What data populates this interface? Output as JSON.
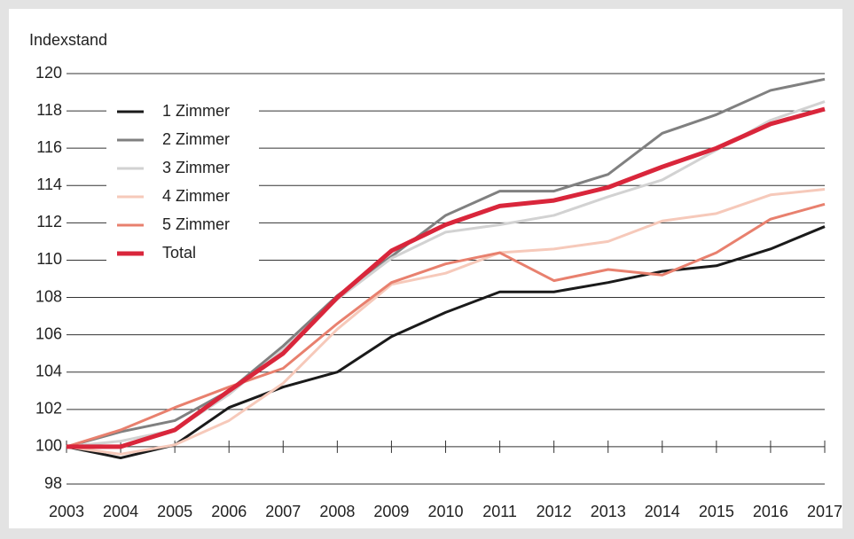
{
  "chart_data": {
    "type": "line",
    "y_label": "Indexstand",
    "x": [
      2003,
      2004,
      2005,
      2006,
      2007,
      2008,
      2009,
      2010,
      2011,
      2012,
      2013,
      2014,
      2015,
      2016,
      2017
    ],
    "xlim": [
      2003,
      2017
    ],
    "xticks": [
      2003,
      2004,
      2005,
      2006,
      2007,
      2008,
      2009,
      2010,
      2011,
      2012,
      2013,
      2014,
      2015,
      2016,
      2017
    ],
    "ylim": [
      98,
      120
    ],
    "yticks": [
      98,
      100,
      102,
      104,
      106,
      108,
      110,
      112,
      114,
      116,
      118,
      120
    ],
    "grid": true,
    "legend": "upper left",
    "series": [
      {
        "name": "1 Zimmer",
        "color": "#1a1a1a",
        "values": [
          100,
          99.4,
          100.1,
          102.1,
          103.2,
          104.0,
          105.9,
          107.2,
          108.3,
          108.3,
          108.8,
          109.4,
          109.7,
          110.6,
          111.8
        ]
      },
      {
        "name": "2 Zimmer",
        "color": "#808080",
        "values": [
          100,
          100.8,
          101.4,
          103.0,
          105.4,
          108.1,
          110.2,
          112.4,
          113.7,
          113.7,
          114.6,
          116.8,
          117.8,
          119.1,
          119.7
        ]
      },
      {
        "name": "3 Zimmer",
        "color": "#d2d2d2",
        "values": [
          100,
          100.3,
          100.9,
          102.8,
          105.2,
          107.9,
          110.1,
          111.5,
          111.9,
          112.4,
          113.4,
          114.3,
          115.9,
          117.5,
          118.5
        ]
      },
      {
        "name": "4 Zimmer",
        "color": "#f6c9ba",
        "values": [
          100,
          99.6,
          100.1,
          101.4,
          103.4,
          106.3,
          108.7,
          109.3,
          110.4,
          110.6,
          111.0,
          112.1,
          112.5,
          113.5,
          113.8
        ]
      },
      {
        "name": "5 Zimmer",
        "color": "#e8806e",
        "values": [
          100,
          100.9,
          102.1,
          103.2,
          104.2,
          106.6,
          108.8,
          109.8,
          110.4,
          108.9,
          109.5,
          109.2,
          110.4,
          112.2,
          113.0
        ]
      },
      {
        "name": "Total",
        "color": "#d9263b",
        "values": [
          100,
          100.0,
          100.9,
          103.0,
          105.0,
          108.0,
          110.5,
          111.9,
          112.9,
          113.2,
          113.9,
          115.0,
          116.0,
          117.3,
          118.1
        ]
      }
    ]
  }
}
